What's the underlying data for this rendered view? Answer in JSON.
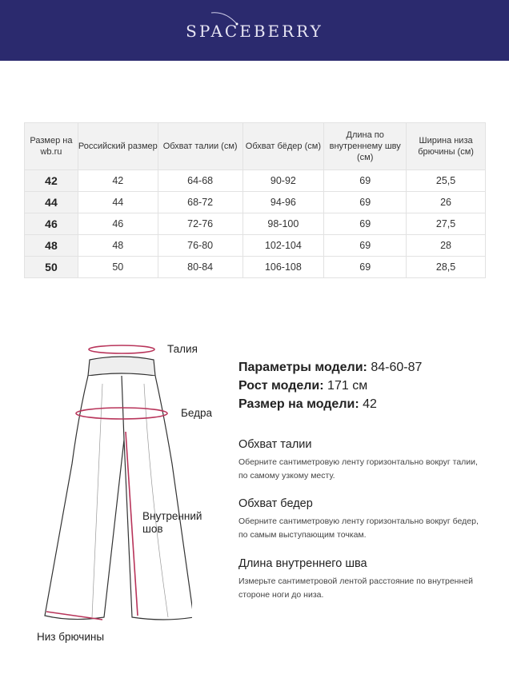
{
  "brand": "SPACEBERRY",
  "colors": {
    "header": "#2b2a6e",
    "accent": "#b8345a"
  },
  "table": {
    "headers": [
      "Размер на wb.ru",
      "Российский размер",
      "Обхват талии (см)",
      "Обхват бёдер (см)",
      "Длина по внутреннему шву (см)",
      "Ширина низа брючины (см)"
    ],
    "rows": [
      [
        "42",
        "42",
        "64-68",
        "90-92",
        "69",
        "25,5"
      ],
      [
        "44",
        "44",
        "68-72",
        "94-96",
        "69",
        "26"
      ],
      [
        "46",
        "46",
        "72-76",
        "98-100",
        "69",
        "27,5"
      ],
      [
        "48",
        "48",
        "76-80",
        "102-104",
        "69",
        "28"
      ],
      [
        "50",
        "50",
        "80-84",
        "106-108",
        "69",
        "28,5"
      ]
    ]
  },
  "diagram": {
    "waist": "Талия",
    "hips": "Бедра",
    "inseam_1": "Внутренний",
    "inseam_2": "шов",
    "hem": "Низ брючины"
  },
  "model": [
    {
      "label": "Параметры модели:",
      "value": "84-60-87"
    },
    {
      "label": "Рост модели:",
      "value": "171 см"
    },
    {
      "label": "Размер на модели:",
      "value": "42"
    }
  ],
  "sections": [
    {
      "title": "Обхват талии",
      "text": "Оберните сантиметровую ленту горизонтально вокруг талии, по самому узкому месту."
    },
    {
      "title": "Обхват бедер",
      "text": "Оберните сантиметровую ленту горизонтально вокруг бедер, по самым выступающим точкам."
    },
    {
      "title": "Длина внутреннего шва",
      "text": "Измерьте сантиметровой лентой расстояние по внутренней стороне ноги до низа."
    }
  ]
}
